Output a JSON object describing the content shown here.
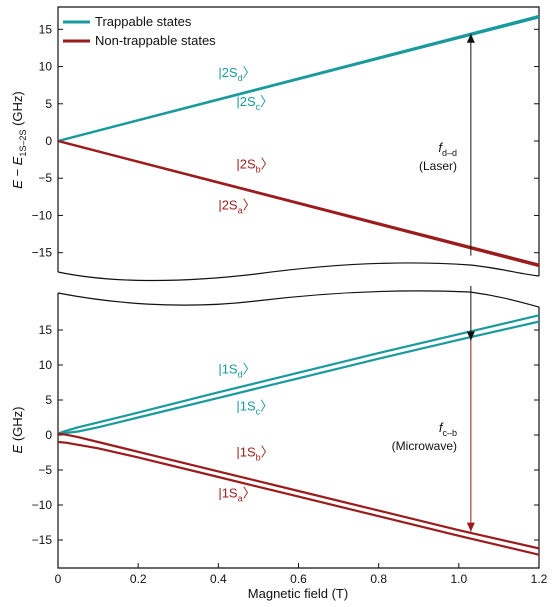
{
  "colors": {
    "trappable": "#1a9a9c",
    "non_trappable": "#9b1c1c",
    "axis": "#111111"
  },
  "chart_data": [
    {
      "type": "line",
      "panel": "top",
      "ylabel_main": "E − E",
      "ylabel_sub": "1S–2S",
      "ylabel_unit": " (GHz)",
      "xlim": [
        0,
        1.2
      ],
      "ylim": [
        -18,
        18
      ],
      "yticks": [
        15,
        10,
        5,
        0,
        -5,
        -10,
        -15
      ],
      "ytick_labels": [
        "15",
        "10",
        "5",
        "0",
        "−5",
        "−10",
        "−15"
      ],
      "legend": {
        "placement": "top-left",
        "entries": [
          {
            "label": "Trappable states",
            "color": "#1a9a9c"
          },
          {
            "label": "Non-trappable states",
            "color": "#9b1c1c"
          }
        ]
      },
      "series": [
        {
          "color": "#1a9a9c",
          "x": [
            0,
            1.2
          ],
          "y": [
            0,
            16.8
          ]
        },
        {
          "color": "#1a9a9c",
          "x": [
            0,
            1.2
          ],
          "y": [
            0,
            16.6
          ]
        },
        {
          "color": "#9b1c1c",
          "x": [
            0,
            1.2
          ],
          "y": [
            0,
            -16.8
          ]
        },
        {
          "color": "#9b1c1c",
          "x": [
            0,
            1.2
          ],
          "y": [
            0,
            -16.6
          ]
        }
      ],
      "state_labels": [
        {
          "ket": "|2S",
          "sub": "d",
          "color": "#1a9a9c",
          "x": 0.4,
          "y": 8.6
        },
        {
          "ket": "|2S",
          "sub": "c",
          "color": "#1a9a9c",
          "x": 0.445,
          "y": 4.7
        },
        {
          "ket": "|2S",
          "sub": "b",
          "color": "#9b1c1c",
          "x": 0.445,
          "y": -3.7
        },
        {
          "ket": "|2S",
          "sub": "a",
          "color": "#9b1c1c",
          "x": 0.4,
          "y": -9.2
        }
      ],
      "arrow": {
        "x": 1.03,
        "y_from": -15.4,
        "y_to": 14.4,
        "color": "#111111"
      },
      "annotation": {
        "main": "f",
        "sub": "d–d",
        "line2": "(Laser)",
        "x": 1.0,
        "y": -0.2
      }
    },
    {
      "type": "line",
      "panel": "bottom",
      "ylabel_main": "E",
      "ylabel_unit": " (GHz)",
      "xlabel": "Magnetic field (T)",
      "xlim": [
        0,
        1.2
      ],
      "ylim": [
        -19,
        19
      ],
      "xticks": [
        0,
        0.2,
        0.4,
        0.6,
        0.8,
        1.0,
        1.2
      ],
      "xtick_labels": [
        "0",
        "0.2",
        "0.4",
        "0.6",
        "0.8",
        "1.0",
        "1.2"
      ],
      "yticks": [
        15,
        10,
        5,
        0,
        -5,
        -10,
        -15
      ],
      "ytick_labels": [
        "15",
        "10",
        "5",
        "0",
        "−5",
        "−10",
        "−15"
      ],
      "series": [
        {
          "color": "#1a9a9c",
          "x": [
            0,
            0.02,
            0.05,
            0.1,
            0.2,
            0.4,
            0.6,
            0.8,
            1.0,
            1.2
          ],
          "y": [
            0.2,
            0.6,
            1.1,
            1.8,
            3.2,
            6.1,
            8.9,
            11.7,
            14.4,
            17.1
          ]
        },
        {
          "color": "#1a9a9c",
          "x": [
            0,
            0.02,
            0.05,
            0.1,
            0.2,
            0.4,
            0.6,
            0.8,
            1.0,
            1.2
          ],
          "y": [
            0.2,
            0.3,
            0.5,
            1.1,
            2.5,
            5.3,
            8.1,
            10.9,
            13.6,
            16.2
          ]
        },
        {
          "color": "#9b1c1c",
          "x": [
            0,
            0.02,
            0.05,
            0.1,
            0.2,
            0.4,
            0.6,
            0.8,
            1.0,
            1.2
          ],
          "y": [
            0.2,
            0.05,
            -0.3,
            -1.0,
            -2.4,
            -5.2,
            -8.0,
            -10.8,
            -13.6,
            -16.2
          ]
        },
        {
          "color": "#9b1c1c",
          "x": [
            0,
            0.02,
            0.05,
            0.1,
            0.2,
            0.4,
            0.6,
            0.8,
            1.0,
            1.2
          ],
          "y": [
            -1.0,
            -1.1,
            -1.4,
            -1.9,
            -3.2,
            -6.0,
            -8.8,
            -11.6,
            -14.4,
            -17.1
          ]
        }
      ],
      "state_labels": [
        {
          "ket": "|1S",
          "sub": "d",
          "color": "#1a9a9c",
          "x": 0.4,
          "y": 8.8
        },
        {
          "ket": "|1S",
          "sub": "c",
          "color": "#1a9a9c",
          "x": 0.445,
          "y": 3.5
        },
        {
          "ket": "|1S",
          "sub": "b",
          "color": "#9b1c1c",
          "x": 0.445,
          "y": -3.1
        },
        {
          "ket": "|1S",
          "sub": "a",
          "color": "#9b1c1c",
          "x": 0.4,
          "y": -8.9
        }
      ],
      "arrow": {
        "x": 1.03,
        "y_from": 14.0,
        "y_to": -13.8,
        "color": "#9b1c1c"
      },
      "top_arrowhead": {
        "x": 1.03,
        "y": 13.5,
        "color": "#111111"
      },
      "annotation": {
        "main": "f",
        "sub": "c–b",
        "line2": "(Microwave)",
        "x": 1.0,
        "y": -1.0
      }
    }
  ]
}
